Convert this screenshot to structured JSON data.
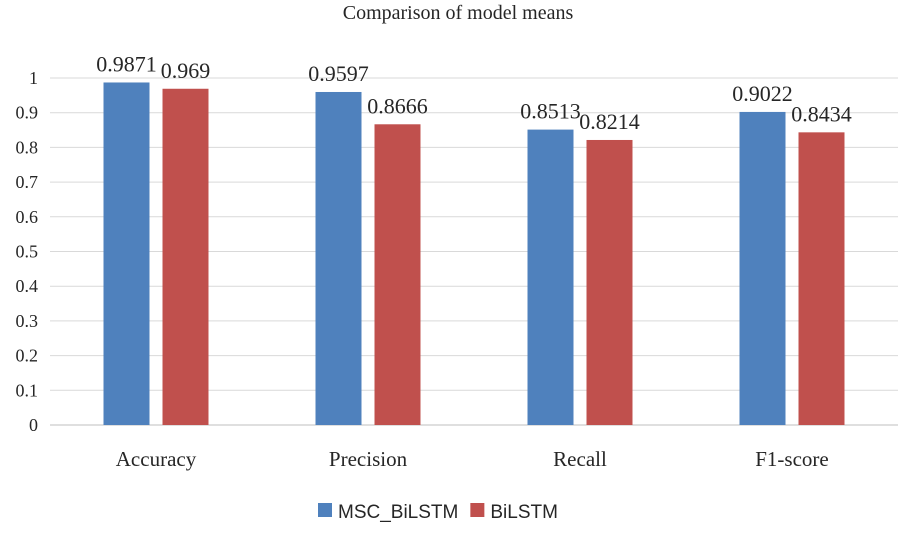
{
  "chart_data": {
    "type": "bar",
    "title": "Comparison of model means",
    "categories": [
      "Accuracy",
      "Precision",
      "Recall",
      "F1-score"
    ],
    "series": [
      {
        "name": "MSC_BiLSTM",
        "color": "#4f81bd",
        "values": [
          0.9871,
          0.9597,
          0.8513,
          0.9022
        ],
        "labels": [
          "0.9871",
          "0.9597",
          "0.8513",
          "0.9022"
        ]
      },
      {
        "name": "BiLSTM",
        "color": "#c0504d",
        "values": [
          0.969,
          0.8666,
          0.8214,
          0.8434
        ],
        "labels": [
          "0.969",
          "0.8666",
          "0.8214",
          "0.8434"
        ]
      }
    ],
    "ylim": [
      0,
      1
    ],
    "yticks": [
      "0",
      "0.1",
      "0.2",
      "0.3",
      "0.4",
      "0.5",
      "0.6",
      "0.7",
      "0.8",
      "0.9",
      "1"
    ],
    "grid": true,
    "legend_position": "bottom",
    "xlabel": "",
    "ylabel": ""
  }
}
